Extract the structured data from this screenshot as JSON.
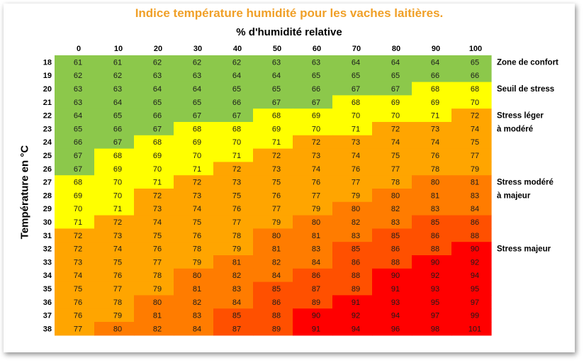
{
  "colors": {
    "green": "#8cc84b",
    "yellow": "#ffff00",
    "lightorange": "#ffa500",
    "darkorange": "#ff7c00",
    "orangered": "#ff5000",
    "red": "#ff0000",
    "title": "#f0a028"
  },
  "chart_data": {
    "type": "heatmap",
    "title": "Indice température humidité pour les vaches laitières.",
    "xlabel": "% d'humidité relative",
    "ylabel": "Température en °C",
    "x": [
      0,
      10,
      20,
      30,
      40,
      50,
      60,
      70,
      80,
      90,
      100
    ],
    "y": [
      18,
      19,
      20,
      21,
      22,
      23,
      24,
      25,
      26,
      27,
      28,
      29,
      30,
      31,
      32,
      33,
      34,
      35,
      36,
      37,
      38
    ],
    "values": [
      [
        61,
        61,
        62,
        62,
        62,
        63,
        63,
        64,
        64,
        64,
        65
      ],
      [
        62,
        62,
        63,
        63,
        64,
        64,
        65,
        65,
        65,
        66,
        66
      ],
      [
        63,
        63,
        64,
        64,
        65,
        65,
        66,
        67,
        67,
        68,
        68
      ],
      [
        63,
        64,
        65,
        65,
        66,
        67,
        67,
        68,
        69,
        69,
        70
      ],
      [
        64,
        65,
        66,
        67,
        67,
        68,
        69,
        70,
        70,
        71,
        72
      ],
      [
        65,
        66,
        67,
        68,
        68,
        69,
        70,
        71,
        72,
        73,
        74
      ],
      [
        66,
        67,
        68,
        69,
        70,
        71,
        72,
        73,
        74,
        74,
        75
      ],
      [
        67,
        68,
        69,
        70,
        71,
        72,
        73,
        74,
        75,
        76,
        77
      ],
      [
        67,
        69,
        70,
        71,
        72,
        73,
        74,
        76,
        77,
        78,
        79
      ],
      [
        68,
        70,
        71,
        72,
        73,
        75,
        76,
        77,
        78,
        80,
        81
      ],
      [
        69,
        70,
        72,
        73,
        75,
        76,
        77,
        79,
        80,
        81,
        83
      ],
      [
        70,
        71,
        73,
        74,
        76,
        77,
        79,
        80,
        82,
        83,
        84
      ],
      [
        71,
        72,
        74,
        75,
        77,
        79,
        80,
        82,
        83,
        85,
        86
      ],
      [
        72,
        73,
        75,
        76,
        78,
        80,
        81,
        83,
        85,
        86,
        88
      ],
      [
        72,
        74,
        76,
        78,
        79,
        81,
        83,
        85,
        86,
        88,
        90
      ],
      [
        73,
        75,
        77,
        79,
        81,
        82,
        84,
        86,
        88,
        90,
        92
      ],
      [
        74,
        76,
        78,
        80,
        82,
        84,
        86,
        88,
        90,
        92,
        94
      ],
      [
        75,
        77,
        79,
        81,
        83,
        85,
        87,
        89,
        91,
        93,
        95
      ],
      [
        76,
        78,
        80,
        82,
        84,
        86,
        89,
        91,
        93,
        95,
        97
      ],
      [
        76,
        79,
        81,
        83,
        85,
        88,
        90,
        92,
        94,
        97,
        99
      ],
      [
        77,
        80,
        82,
        84,
        87,
        89,
        91,
        94,
        96,
        98,
        101
      ]
    ],
    "zones": [
      {
        "label": "Zone de confort",
        "color": "green",
        "max": 67
      },
      {
        "label": "Seuil de stress",
        "color": "yellow",
        "max": 71
      },
      {
        "label": "Stress léger à modéré",
        "color": "lightorange",
        "max": 79
      },
      {
        "label": "Stress modéré à majeur",
        "color": "darkorange",
        "max": 89
      },
      {
        "label": "Stress majeur",
        "color": "red",
        "max": 999
      }
    ],
    "right_labels": [
      {
        "row": 0,
        "lines": [
          "Zone de confort"
        ]
      },
      {
        "row": 2,
        "lines": [
          "Seuil de stress"
        ]
      },
      {
        "row": 4,
        "lines": [
          "Stress léger",
          "à modéré"
        ]
      },
      {
        "row": 9,
        "lines": [
          "Stress modéré",
          "à majeur"
        ]
      },
      {
        "row": 14,
        "lines": [
          "Stress majeur"
        ]
      }
    ]
  }
}
